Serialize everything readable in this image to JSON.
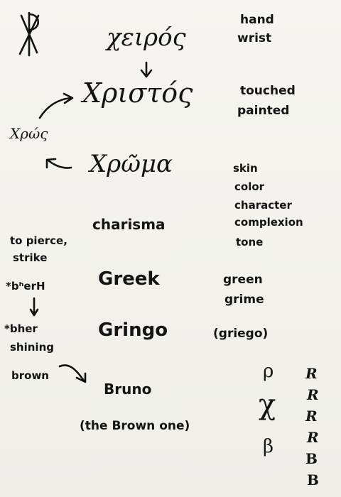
{
  "left_notes": {
    "chros": "Χρώς",
    "to_pierce": "to pierce,",
    "strike": "strike",
    "root1": "*bʰerH",
    "root2": "*bher",
    "shining": "shining",
    "brown": "brown"
  },
  "center": {
    "cheiros": "χειρός",
    "christos": "Χριστός",
    "chroma": "Χρῶμα",
    "charisma": "charisma",
    "greek": "Greek",
    "gringo": "Gringo",
    "bruno": "Bruno",
    "brown_one": "(the Brown one)"
  },
  "right_notes": {
    "hand": "hand",
    "wrist": "wrist",
    "touched": "touched",
    "painted": "painted",
    "skin": "skin",
    "color": "color",
    "character": "character",
    "complexion": "complexion",
    "tone": "tone",
    "green": "green",
    "grime": "grime",
    "griego": "(griego)"
  },
  "letter_forms": {
    "rho": "ρ",
    "chi": "χ",
    "beta": "β",
    "r_column": [
      "R",
      "R",
      "R",
      "R",
      "B",
      "B"
    ]
  },
  "symbols": {
    "chi_rho": "chi-rho monogram"
  }
}
